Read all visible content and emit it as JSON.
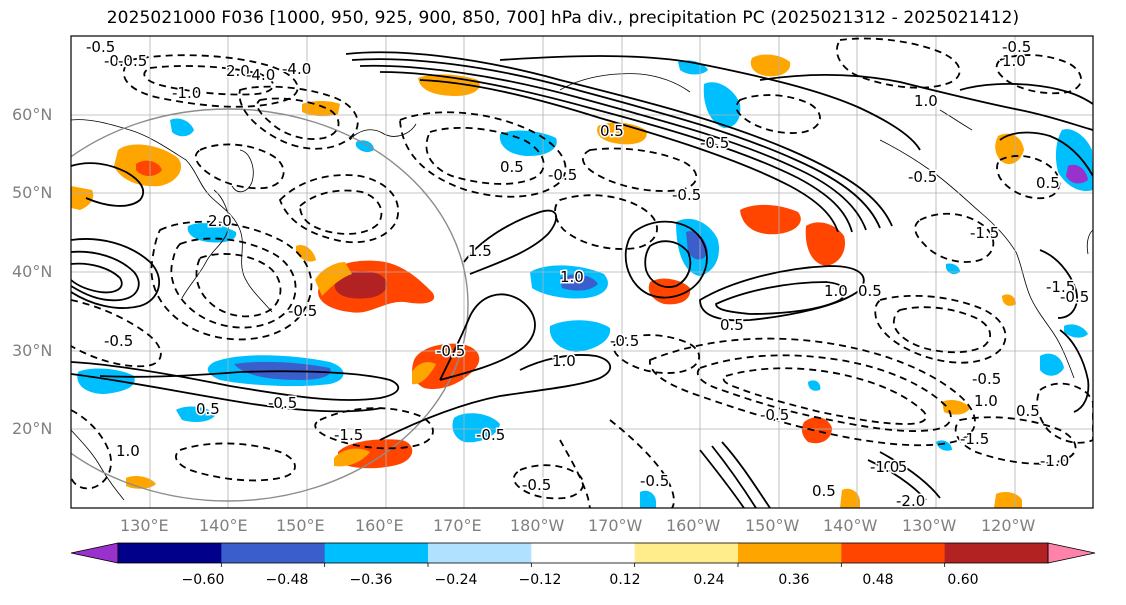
{
  "title": "2025021000 F036 [1000, 950, 925, 900, 850, 700] hPa div., precipitation PC (2025021312 - 2025021412)",
  "map": {
    "lat_labels": [
      "60°N",
      "50°N",
      "40°N",
      "30°N",
      "20°N"
    ],
    "lon_labels": [
      "130°E",
      "140°E",
      "150°E",
      "160°E",
      "170°E",
      "180°W",
      "170°W",
      "160°W",
      "150°W",
      "140°W",
      "130°W",
      "120°W"
    ],
    "contour_labels": [
      "-0.5",
      "-0.5",
      "2.0",
      "-4.0",
      "-1.0",
      "1.0",
      "-0.5",
      "1.0",
      "-1.5",
      "-0.5",
      "0.5",
      "-0.5",
      "0.5",
      "-0.5",
      "1.0",
      "-0.5",
      "-0.5",
      "-0.5",
      "-0.5",
      "0.5",
      "-0.5",
      "-0.5",
      "1.0",
      "-1.5",
      "0.5",
      "-0.5",
      "-1.0",
      "1.0",
      "0.5",
      "-0.5",
      "-1.5",
      "-0.5",
      "0.5",
      "-2.0",
      "-0.5",
      "1.0",
      "-0.5",
      "2.0",
      "-4.0",
      "-0.5",
      "1.5",
      "1.0",
      "0.5",
      "-1.0",
      "0.5",
      "-1.5",
      "-0.5",
      "-0.5"
    ]
  },
  "colorbar": {
    "ticks": [
      "−0.60",
      "−0.48",
      "−0.36",
      "−0.24",
      "−0.12",
      "0.12",
      "0.24",
      "0.36",
      "0.48",
      "0.60"
    ],
    "colors": [
      "#9932cc",
      "#00008b",
      "#3a5fcd",
      "#00bfff",
      "#b0e2ff",
      "#ffffff",
      "#ffec8b",
      "#ffa500",
      "#ff4500",
      "#b22222",
      "#ff82ab"
    ]
  }
}
